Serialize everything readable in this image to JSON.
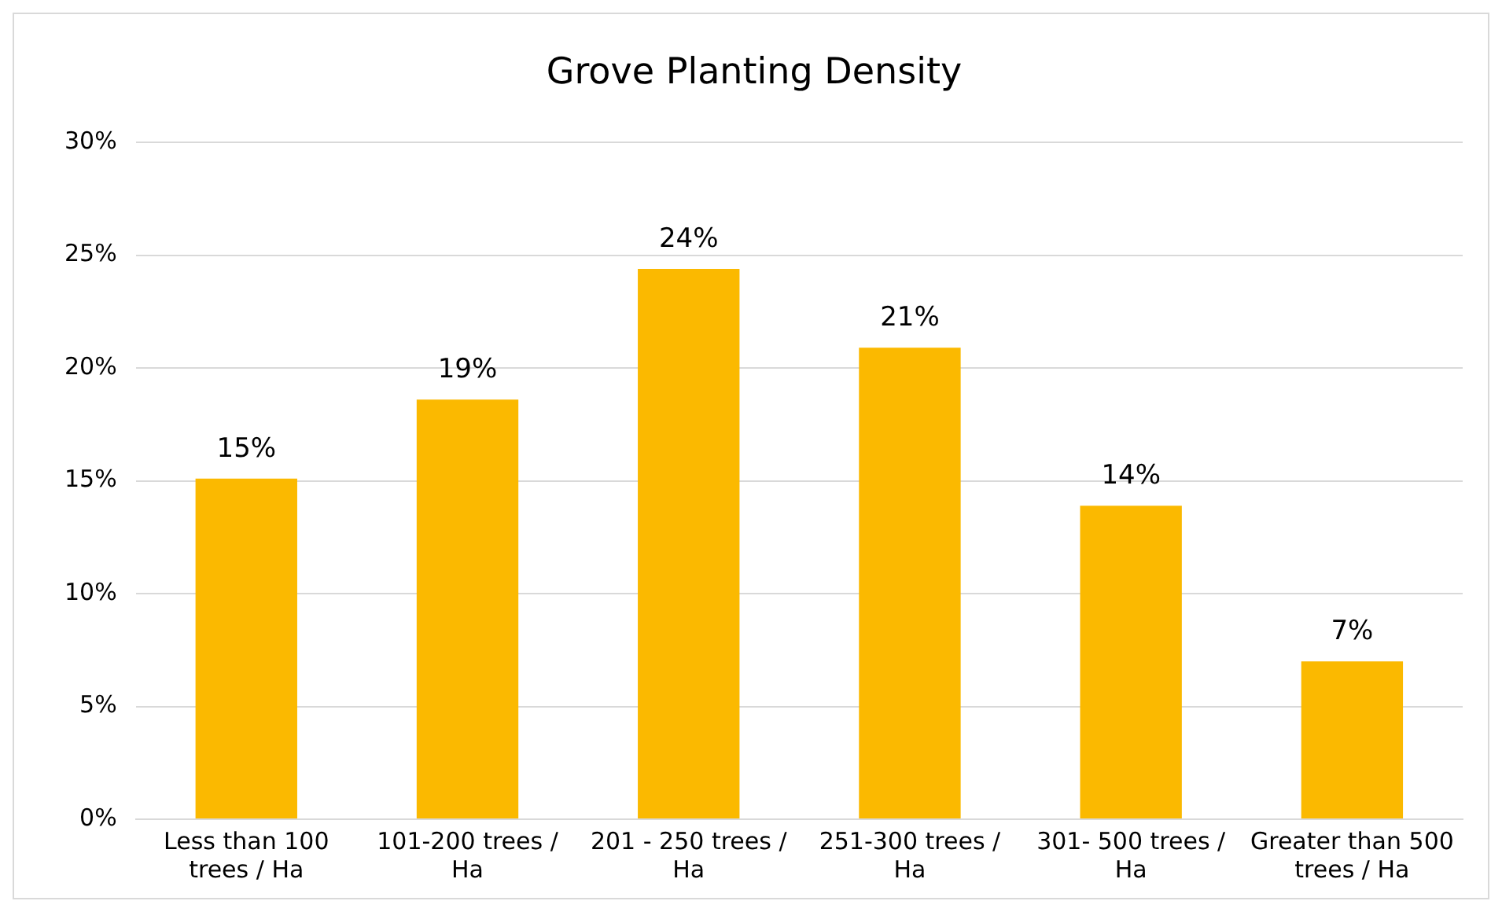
{
  "chart_data": {
    "type": "bar",
    "title": "Grove Planting Density",
    "categories": [
      "Less than 100 trees / Ha",
      "101-200 trees / Ha",
      "201 - 250 trees / Ha",
      "251-300 trees / Ha",
      "301- 500 trees / Ha",
      "Greater than 500 trees / Ha"
    ],
    "values": [
      15.1,
      18.6,
      24.4,
      20.9,
      13.9,
      7.0
    ],
    "value_labels": [
      "15%",
      "19%",
      "24%",
      "21%",
      "14%",
      "7%"
    ],
    "color": "#fbb900",
    "ylim": [
      0,
      30
    ],
    "yticks": [
      {
        "value": 0,
        "label": "0%"
      },
      {
        "value": 5,
        "label": "5%"
      },
      {
        "value": 10,
        "label": "10%"
      },
      {
        "value": 15,
        "label": "15%"
      },
      {
        "value": 20,
        "label": "20%"
      },
      {
        "value": 25,
        "label": "25%"
      },
      {
        "value": 30,
        "label": "30%"
      }
    ],
    "grid": "y",
    "legend": false
  }
}
